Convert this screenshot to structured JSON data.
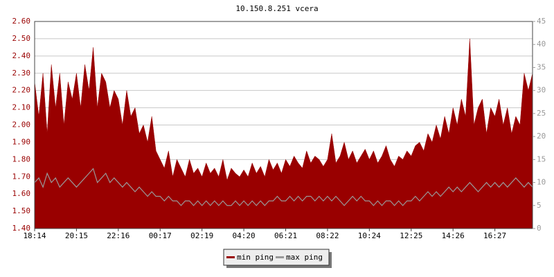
{
  "chart_data": {
    "type": "area",
    "title": "10.150.8.251 vcera",
    "categories": [
      "18:14",
      null,
      null,
      null,
      null,
      null,
      null,
      null,
      null,
      null,
      "20:15",
      null,
      null,
      null,
      null,
      null,
      null,
      null,
      null,
      null,
      "22:16",
      null,
      null,
      null,
      null,
      null,
      null,
      null,
      null,
      null,
      "00:17",
      null,
      null,
      null,
      null,
      null,
      null,
      null,
      null,
      null,
      "02:19",
      null,
      null,
      null,
      null,
      null,
      null,
      null,
      null,
      null,
      "04:20",
      null,
      null,
      null,
      null,
      null,
      null,
      null,
      null,
      null,
      "06:21",
      null,
      null,
      null,
      null,
      null,
      null,
      null,
      null,
      null,
      "08:22",
      null,
      null,
      null,
      null,
      null,
      null,
      null,
      null,
      null,
      "10:24",
      null,
      null,
      null,
      null,
      null,
      null,
      null,
      null,
      null,
      "12:25",
      null,
      null,
      null,
      null,
      null,
      null,
      null,
      null,
      null,
      "14:26",
      null,
      null,
      null,
      null,
      null,
      null,
      null,
      null,
      null,
      "16:27",
      null,
      null,
      null,
      null,
      null,
      null,
      null,
      null,
      null
    ],
    "series": [
      {
        "name": "min ping",
        "color": "#990000",
        "style": "area",
        "values": [
          2.25,
          2.05,
          2.3,
          1.95,
          2.35,
          2.1,
          2.3,
          2.0,
          2.25,
          2.15,
          2.3,
          2.1,
          2.35,
          2.2,
          2.45,
          2.1,
          2.3,
          2.25,
          2.1,
          2.2,
          2.15,
          2.0,
          2.2,
          2.05,
          2.1,
          1.95,
          2.0,
          1.9,
          2.05,
          1.85,
          1.8,
          1.75,
          1.85,
          1.7,
          1.8,
          1.75,
          1.7,
          1.8,
          1.72,
          1.75,
          1.7,
          1.78,
          1.72,
          1.75,
          1.7,
          1.8,
          1.68,
          1.75,
          1.72,
          1.7,
          1.74,
          1.7,
          1.78,
          1.72,
          1.76,
          1.7,
          1.8,
          1.74,
          1.78,
          1.72,
          1.8,
          1.76,
          1.82,
          1.78,
          1.75,
          1.85,
          1.78,
          1.82,
          1.8,
          1.76,
          1.8,
          1.95,
          1.78,
          1.82,
          1.9,
          1.8,
          1.85,
          1.78,
          1.82,
          1.86,
          1.8,
          1.85,
          1.78,
          1.82,
          1.88,
          1.8,
          1.76,
          1.82,
          1.8,
          1.85,
          1.82,
          1.88,
          1.9,
          1.85,
          1.95,
          1.9,
          2.0,
          1.92,
          2.05,
          1.95,
          2.1,
          2.0,
          2.15,
          2.05,
          2.5,
          2.0,
          2.1,
          2.15,
          1.95,
          2.1,
          2.05,
          2.15,
          2.0,
          2.1,
          1.95,
          2.05,
          2.0,
          2.3,
          2.2,
          2.3
        ]
      },
      {
        "name": "max ping",
        "color": "#999999",
        "style": "line",
        "axis": "y2",
        "values": [
          10,
          11,
          9,
          12,
          10,
          11,
          9,
          10,
          11,
          10,
          9,
          10,
          11,
          12,
          13,
          10,
          11,
          12,
          10,
          11,
          10,
          9,
          10,
          9,
          8,
          9,
          8,
          7,
          8,
          7,
          7,
          6,
          7,
          6,
          6,
          5,
          6,
          6,
          5,
          6,
          5,
          6,
          5,
          6,
          5,
          6,
          5,
          5,
          6,
          5,
          6,
          5,
          6,
          5,
          6,
          5,
          6,
          6,
          7,
          6,
          6,
          7,
          6,
          7,
          6,
          7,
          7,
          6,
          7,
          6,
          7,
          6,
          7,
          6,
          5,
          6,
          7,
          6,
          7,
          6,
          6,
          5,
          6,
          5,
          6,
          6,
          5,
          6,
          5,
          6,
          6,
          7,
          6,
          7,
          8,
          7,
          8,
          7,
          8,
          9,
          8,
          9,
          8,
          9,
          10,
          9,
          8,
          9,
          10,
          9,
          10,
          9,
          10,
          9,
          10,
          11,
          10,
          9,
          10,
          9
        ]
      }
    ],
    "ylim": [
      1.4,
      2.6
    ],
    "yticks": [
      {
        "value": 1.4,
        "label": "1.40"
      },
      {
        "value": 1.5,
        "label": "1.50"
      },
      {
        "value": 1.6,
        "label": "1.60"
      },
      {
        "value": 1.7,
        "label": "1.70"
      },
      {
        "value": 1.8,
        "label": "1.80"
      },
      {
        "value": 1.9,
        "label": "1.90"
      },
      {
        "value": 2.0,
        "label": "2.00"
      },
      {
        "value": 2.1,
        "label": "2.10"
      },
      {
        "value": 2.2,
        "label": "2.20"
      },
      {
        "value": 2.3,
        "label": "2.30"
      },
      {
        "value": 2.4,
        "label": "2.40"
      },
      {
        "value": 2.5,
        "label": "2.50"
      },
      {
        "value": 2.6,
        "label": "2.60"
      }
    ],
    "y2lim": [
      0,
      45
    ],
    "y2ticks": [
      0,
      5,
      10,
      15,
      20,
      25,
      30,
      35,
      40,
      45
    ],
    "grid": true,
    "legend": "bottom"
  }
}
